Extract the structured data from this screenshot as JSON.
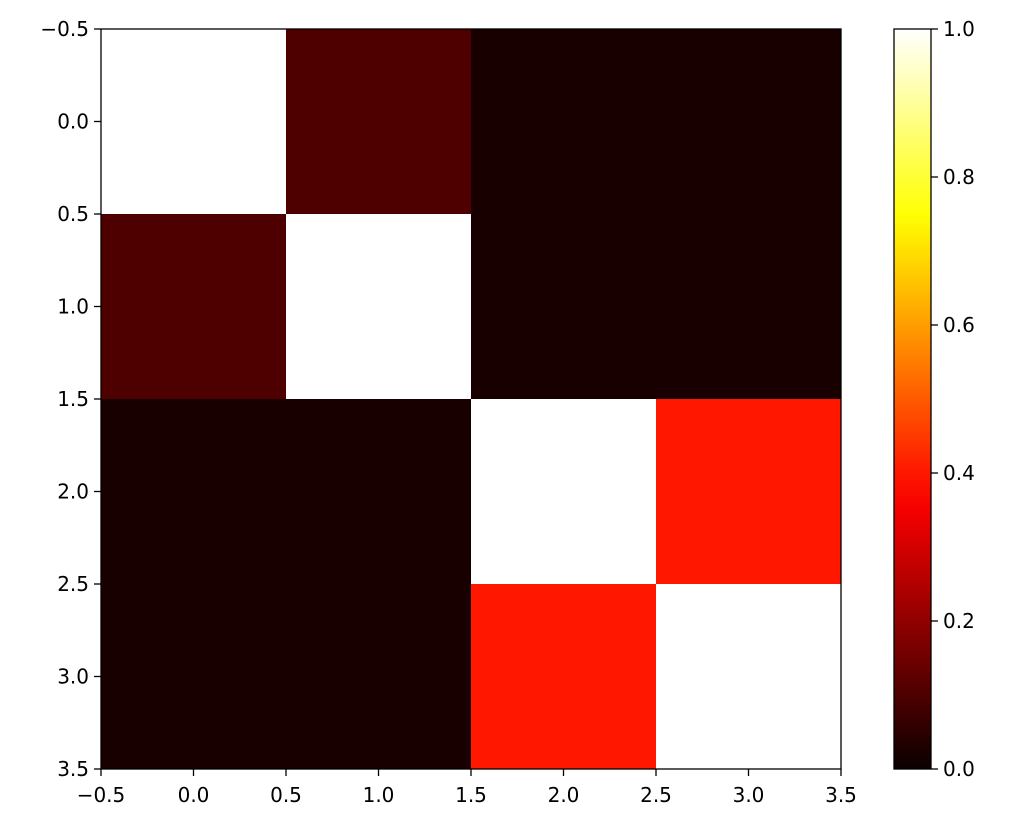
{
  "chart_data": {
    "type": "heatmap",
    "title": "",
    "xlabel": "",
    "ylabel": "",
    "rows": 4,
    "cols": 4,
    "values": [
      [
        1.0,
        0.1,
        0.02,
        0.02
      ],
      [
        0.1,
        1.0,
        0.02,
        0.02
      ],
      [
        0.02,
        0.02,
        1.0,
        0.4
      ],
      [
        0.02,
        0.02,
        0.4,
        1.0
      ]
    ],
    "xlim": [
      -0.5,
      3.5
    ],
    "ylim": [
      3.5,
      -0.5
    ],
    "x_ticks": [
      "−0.5",
      "0.0",
      "0.5",
      "1.0",
      "1.5",
      "2.0",
      "2.5",
      "3.0",
      "3.5"
    ],
    "y_ticks": [
      "−0.5",
      "0.0",
      "0.5",
      "1.0",
      "1.5",
      "2.0",
      "2.5",
      "3.0",
      "3.5"
    ],
    "colorbar": {
      "colormap": "hot",
      "range": [
        0.0,
        1.0
      ],
      "ticks": [
        "0.0",
        "0.2",
        "0.4",
        "0.6",
        "0.8",
        "1.0"
      ]
    },
    "grid": false
  }
}
